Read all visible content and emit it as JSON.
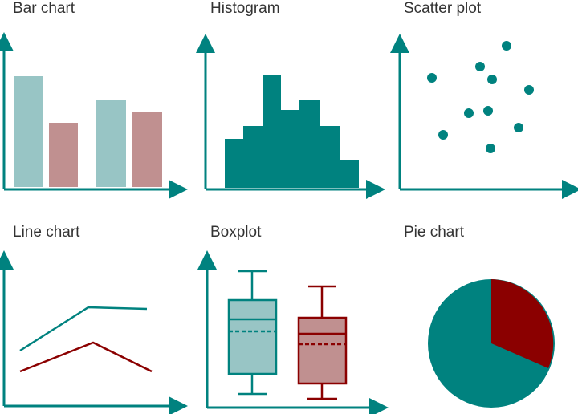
{
  "panels": [
    {
      "title": "Bar chart"
    },
    {
      "title": "Histogram"
    },
    {
      "title": "Scatter plot"
    },
    {
      "title": "Line chart"
    },
    {
      "title": "Boxplot"
    },
    {
      "title": "Pie chart"
    }
  ],
  "colors": {
    "teal": "#00827f",
    "teal_light": "#98c5c5",
    "red": "#8b0000",
    "red_light": "#c09090"
  }
}
